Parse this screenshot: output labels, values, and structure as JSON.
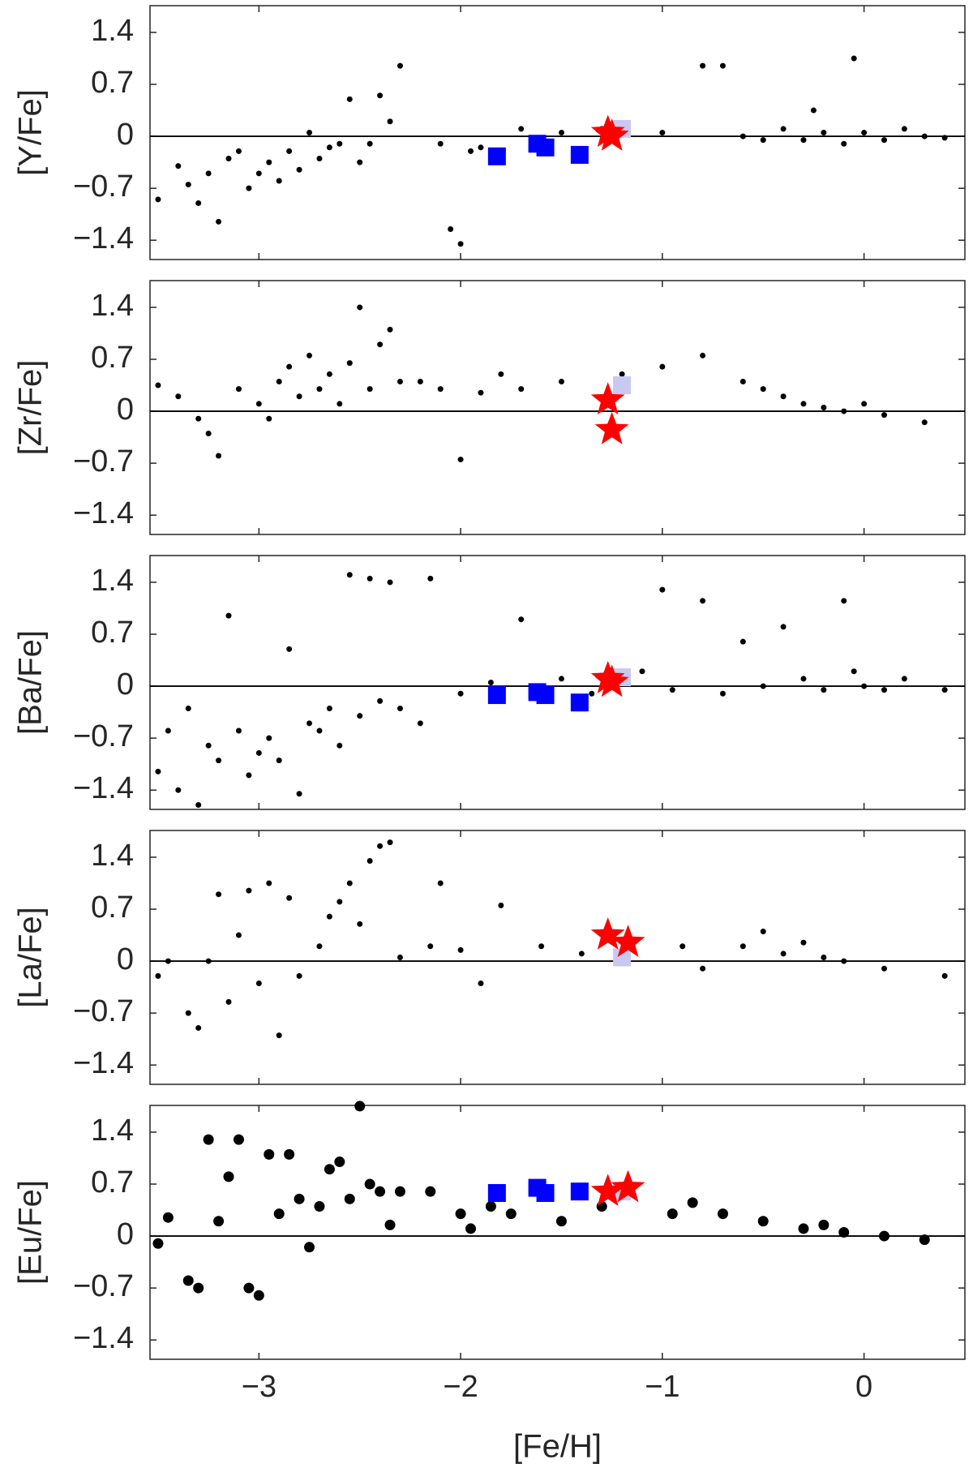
{
  "chart_data": [
    {
      "type": "scatter",
      "ylabel": "[Y/Fe]",
      "xlim": [
        -3.54,
        0.5
      ],
      "ylim": [
        -1.66,
        1.76
      ],
      "hline": 0,
      "yticks": [
        {
          "value": -1.4,
          "label": "−1.4"
        },
        {
          "value": -0.7,
          "label": "−0.7"
        },
        0,
        0.7,
        1.4
      ],
      "series": [
        {
          "marker": "circle",
          "size": 3.5,
          "color": "#000000",
          "x": [
            -3.5,
            -3.4,
            -3.35,
            -3.3,
            -3.25,
            -3.2,
            -3.15,
            -3.1,
            -3.05,
            -3.0,
            -2.95,
            -2.9,
            -2.85,
            -2.8,
            -2.75,
            -2.7,
            -2.65,
            -2.6,
            -2.55,
            -2.5,
            -2.45,
            -2.4,
            -2.35,
            -2.3,
            -2.1,
            -2.05,
            -2.0,
            -1.95,
            -1.9,
            -1.7,
            -1.5,
            -1.3,
            -1.0,
            -0.8,
            -0.7,
            -0.6,
            -0.5,
            -0.4,
            -0.3,
            -0.25,
            -0.2,
            -0.1,
            -0.05,
            0.0,
            0.1,
            0.2,
            0.3,
            0.4
          ],
          "values": [
            -0.85,
            -0.4,
            -0.65,
            -0.9,
            -0.5,
            -1.15,
            -0.3,
            -0.2,
            -0.7,
            -0.5,
            -0.35,
            -0.6,
            -0.2,
            -0.45,
            0.05,
            -0.3,
            -0.15,
            -0.1,
            0.5,
            -0.35,
            -0.1,
            0.55,
            0.2,
            0.95,
            -0.1,
            -1.25,
            -1.45,
            -0.2,
            -0.15,
            0.1,
            0.05,
            0.1,
            0.05,
            0.95,
            0.95,
            0.0,
            -0.05,
            0.1,
            -0.05,
            0.35,
            0.05,
            -0.1,
            1.05,
            0.05,
            -0.05,
            0.1,
            0.0,
            -0.02
          ]
        },
        {
          "marker": "square",
          "size": 11,
          "color": "#0000ff",
          "x": [
            -1.82,
            -1.62,
            -1.58,
            -1.41
          ],
          "values": [
            -0.27,
            -0.1,
            -0.15,
            -0.25
          ]
        },
        {
          "marker": "square",
          "size": 11,
          "color": "#c8c8f0",
          "x": [
            -1.2
          ],
          "values": [
            0.1
          ]
        },
        {
          "marker": "star",
          "size": 22,
          "color": "#ff0000",
          "x": [
            -1.27,
            -1.25
          ],
          "values": [
            0.05,
            0.0
          ]
        }
      ]
    },
    {
      "type": "scatter",
      "ylabel": "[Zr/Fe]",
      "xlim": [
        -3.54,
        0.5
      ],
      "ylim": [
        -1.66,
        1.76
      ],
      "hline": 0,
      "yticks": [
        {
          "value": -1.4,
          "label": "−1.4"
        },
        {
          "value": -0.7,
          "label": "−0.7"
        },
        0,
        0.7,
        1.4
      ],
      "series": [
        {
          "marker": "circle",
          "size": 3.5,
          "color": "#000000",
          "x": [
            -3.5,
            -3.4,
            -3.3,
            -3.25,
            -3.2,
            -3.1,
            -3.0,
            -2.95,
            -2.9,
            -2.85,
            -2.8,
            -2.75,
            -2.7,
            -2.65,
            -2.6,
            -2.55,
            -2.5,
            -2.45,
            -2.4,
            -2.35,
            -2.3,
            -2.2,
            -2.1,
            -2.0,
            -1.9,
            -1.8,
            -1.7,
            -1.5,
            -1.2,
            -1.0,
            -0.8,
            -0.6,
            -0.5,
            -0.4,
            -0.3,
            -0.2,
            -0.1,
            0.0,
            0.1,
            0.3
          ],
          "values": [
            0.35,
            0.2,
            -0.1,
            -0.3,
            -0.6,
            0.3,
            0.1,
            -0.1,
            0.4,
            0.6,
            0.2,
            0.75,
            0.3,
            0.5,
            0.1,
            0.65,
            1.4,
            0.3,
            0.9,
            1.1,
            0.4,
            0.4,
            0.3,
            -0.65,
            0.25,
            0.5,
            0.3,
            0.4,
            0.5,
            0.6,
            0.75,
            0.4,
            0.3,
            0.2,
            0.1,
            0.05,
            0.0,
            0.1,
            -0.05,
            -0.15
          ]
        },
        {
          "marker": "square",
          "size": 11,
          "color": "#c8c8f0",
          "x": [
            -1.2
          ],
          "values": [
            0.35
          ]
        },
        {
          "marker": "star",
          "size": 22,
          "color": "#ff0000",
          "x": [
            -1.27,
            -1.25
          ],
          "values": [
            0.15,
            -0.25
          ]
        }
      ]
    },
    {
      "type": "scatter",
      "ylabel": "[Ba/Fe]",
      "xlim": [
        -3.54,
        0.5
      ],
      "ylim": [
        -1.66,
        1.76
      ],
      "hline": 0,
      "yticks": [
        {
          "value": -1.4,
          "label": "−1.4"
        },
        {
          "value": -0.7,
          "label": "−0.7"
        },
        0,
        0.7,
        1.4
      ],
      "series": [
        {
          "marker": "circle",
          "size": 3.5,
          "color": "#000000",
          "x": [
            -3.5,
            -3.45,
            -3.4,
            -3.35,
            -3.3,
            -3.25,
            -3.2,
            -3.15,
            -3.1,
            -3.05,
            -3.0,
            -2.95,
            -2.9,
            -2.85,
            -2.8,
            -2.75,
            -2.7,
            -2.65,
            -2.6,
            -2.55,
            -2.5,
            -2.45,
            -2.4,
            -2.35,
            -2.3,
            -2.2,
            -2.15,
            -2.0,
            -1.85,
            -1.7,
            -1.5,
            -1.35,
            -1.1,
            -1.0,
            -0.95,
            -0.8,
            -0.7,
            -0.6,
            -0.5,
            -0.4,
            -0.3,
            -0.2,
            -0.1,
            -0.05,
            0.0,
            0.1,
            0.2,
            0.4
          ],
          "values": [
            -1.15,
            -0.6,
            -1.4,
            -0.3,
            -1.6,
            -0.8,
            -1.0,
            0.95,
            -0.6,
            -1.2,
            -0.9,
            -0.7,
            -1.0,
            0.5,
            -1.45,
            -0.5,
            -0.6,
            -0.3,
            -0.8,
            1.5,
            -0.4,
            1.45,
            -0.2,
            1.4,
            -0.3,
            -0.5,
            1.45,
            -0.1,
            0.05,
            0.9,
            0.1,
            -0.1,
            0.2,
            1.3,
            -0.05,
            1.15,
            -0.1,
            0.6,
            0.0,
            0.8,
            0.1,
            -0.05,
            1.15,
            0.2,
            0.0,
            -0.05,
            0.1,
            -0.05
          ]
        },
        {
          "marker": "square",
          "size": 11,
          "color": "#0000ff",
          "x": [
            -1.82,
            -1.62,
            -1.58,
            -1.41
          ],
          "values": [
            -0.12,
            -0.08,
            -0.12,
            -0.22
          ]
        },
        {
          "marker": "square",
          "size": 11,
          "color": "#c8c8f0",
          "x": [
            -1.2
          ],
          "values": [
            0.12
          ]
        },
        {
          "marker": "star",
          "size": 22,
          "color": "#ff0000",
          "x": [
            -1.27,
            -1.25
          ],
          "values": [
            0.1,
            0.05
          ]
        }
      ]
    },
    {
      "type": "scatter",
      "ylabel": "[La/Fe]",
      "xlim": [
        -3.54,
        0.5
      ],
      "ylim": [
        -1.66,
        1.76
      ],
      "hline": 0,
      "yticks": [
        {
          "value": -1.4,
          "label": "−1.4"
        },
        {
          "value": -0.7,
          "label": "−0.7"
        },
        0,
        0.7,
        1.4
      ],
      "series": [
        {
          "marker": "circle",
          "size": 3.5,
          "color": "#000000",
          "x": [
            -3.5,
            -3.45,
            -3.35,
            -3.3,
            -3.25,
            -3.2,
            -3.15,
            -3.1,
            -3.05,
            -3.0,
            -2.95,
            -2.9,
            -2.85,
            -2.8,
            -2.7,
            -2.65,
            -2.6,
            -2.55,
            -2.5,
            -2.45,
            -2.4,
            -2.35,
            -2.3,
            -2.15,
            -2.1,
            -2.0,
            -1.9,
            -1.8,
            -1.6,
            -1.4,
            -0.9,
            -0.8,
            -0.6,
            -0.5,
            -0.4,
            -0.3,
            -0.2,
            -0.1,
            0.1,
            0.4
          ],
          "values": [
            -0.2,
            0.0,
            -0.7,
            -0.9,
            0.0,
            0.9,
            -0.55,
            0.35,
            0.95,
            -0.3,
            1.05,
            -1.0,
            0.85,
            -0.2,
            0.2,
            0.6,
            0.8,
            1.05,
            0.5,
            1.35,
            1.55,
            1.6,
            0.05,
            0.2,
            1.05,
            0.15,
            -0.3,
            0.75,
            0.2,
            0.1,
            0.2,
            -0.1,
            0.2,
            0.4,
            0.1,
            0.25,
            0.05,
            0.0,
            -0.1,
            -0.2
          ]
        },
        {
          "marker": "square",
          "size": 11,
          "color": "#c8c8f0",
          "x": [
            -1.2
          ],
          "values": [
            0.05
          ]
        },
        {
          "marker": "star",
          "size": 22,
          "color": "#ff0000",
          "x": [
            -1.27,
            -1.17
          ],
          "values": [
            0.35,
            0.25
          ]
        }
      ]
    },
    {
      "type": "scatter",
      "ylabel": "[Eu/Fe]",
      "xlabel": "[Fe/H]",
      "xlim": [
        -3.54,
        0.5
      ],
      "ylim": [
        -1.66,
        1.76
      ],
      "hline": 0,
      "xticks": [
        {
          "value": -3,
          "label": "−3"
        },
        {
          "value": -2,
          "label": "−2"
        },
        {
          "value": -1,
          "label": "−1"
        },
        0
      ],
      "yticks": [
        {
          "value": -1.4,
          "label": "−1.4"
        },
        {
          "value": -0.7,
          "label": "−0.7"
        },
        0,
        0.7,
        1.4
      ],
      "series": [
        {
          "marker": "circle",
          "size": 6.5,
          "color": "#000000",
          "x": [
            -3.5,
            -3.45,
            -3.35,
            -3.3,
            -3.25,
            -3.2,
            -3.15,
            -3.1,
            -3.05,
            -3.0,
            -2.95,
            -2.9,
            -2.85,
            -2.8,
            -2.75,
            -2.7,
            -2.65,
            -2.6,
            -2.55,
            -2.5,
            -2.45,
            -2.4,
            -2.35,
            -2.3,
            -2.15,
            -2.0,
            -1.95,
            -1.85,
            -1.75,
            -1.5,
            -1.3,
            -0.95,
            -0.85,
            -0.7,
            -0.5,
            -0.3,
            -0.2,
            -0.1,
            0.1,
            0.3
          ],
          "values": [
            -0.1,
            0.25,
            -0.6,
            -0.7,
            1.3,
            0.2,
            0.8,
            1.3,
            -0.7,
            -0.8,
            1.1,
            0.3,
            1.1,
            0.5,
            -0.15,
            0.4,
            0.9,
            1.0,
            0.5,
            1.75,
            0.7,
            0.6,
            0.15,
            0.6,
            0.6,
            0.3,
            0.1,
            0.4,
            0.3,
            0.2,
            0.4,
            0.3,
            0.45,
            0.3,
            0.2,
            0.1,
            0.15,
            0.05,
            0.0,
            -0.05
          ]
        },
        {
          "marker": "square",
          "size": 11,
          "color": "#0000ff",
          "x": [
            -1.82,
            -1.62,
            -1.58,
            -1.41
          ],
          "values": [
            0.58,
            0.65,
            0.58,
            0.6
          ]
        },
        {
          "marker": "square",
          "size": 11,
          "color": "#c8c8f0",
          "x": [
            -1.2
          ],
          "values": [
            0.6
          ]
        },
        {
          "marker": "star",
          "size": 22,
          "color": "#ff0000",
          "x": [
            -1.27,
            -1.17
          ],
          "values": [
            0.6,
            0.65
          ]
        }
      ]
    }
  ]
}
